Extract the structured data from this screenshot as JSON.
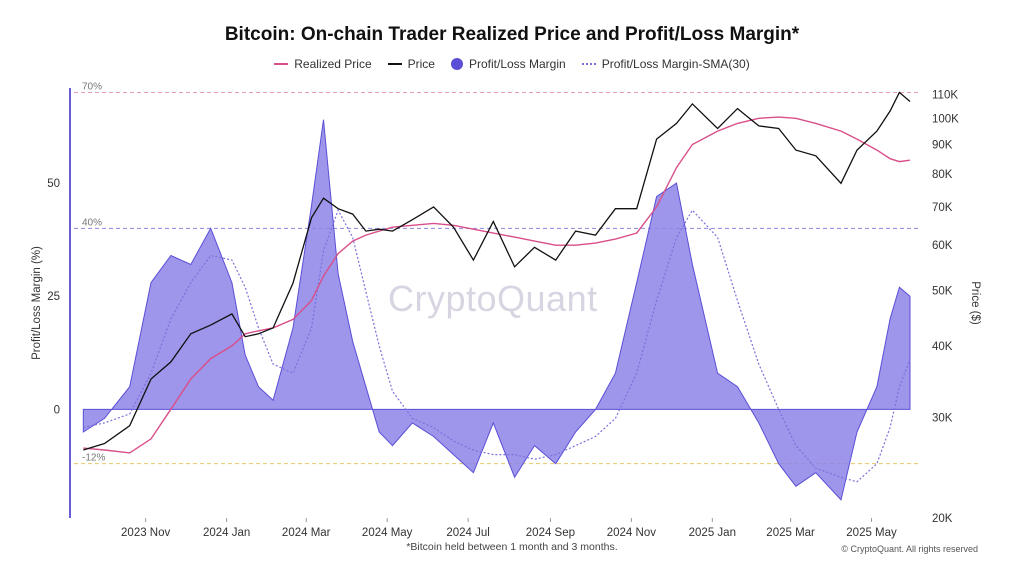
{
  "chart_data": {
    "type": "line",
    "title": "Bitcoin: On-chain Trader Realized Price and Profit/Loss Margin*",
    "footnote": "*Bitcoin held between 1 month and 3 months.",
    "copyright": "© CryptoQuant. All rights reserved",
    "watermark": "CryptoQuant",
    "ylabel_left": "Profit/Loss Margin (%)",
    "ylabel_right": "Price ($)",
    "x_ticks": [
      "2023 Nov",
      "2024 Jan",
      "2024 Mar",
      "2024 May",
      "2024 Jul",
      "2024 Sep",
      "2024 Nov",
      "2025 Jan",
      "2025 Mar",
      "2025 May"
    ],
    "y_left_ticks": [
      "0",
      "25",
      "50"
    ],
    "y_left_range": [
      -24,
      71
    ],
    "y_right_ticks": [
      "20K",
      "30K",
      "40K",
      "50K",
      "60K",
      "70K",
      "80K",
      "90K",
      "100K",
      "110K"
    ],
    "y_right_scale": "log",
    "y_right_range": [
      20000,
      113000
    ],
    "reference_lines": [
      {
        "label": "70%",
        "value": 70,
        "color": "#e8a0b0"
      },
      {
        "label": "40%",
        "value": 40,
        "color": "#8c88e0"
      },
      {
        "label": "-12%",
        "value": -12,
        "color": "#e8c86a"
      }
    ],
    "legend_placement": "top-center",
    "grid": false,
    "x": [
      "2023-09-15",
      "2023-10-01",
      "2023-10-20",
      "2023-11-05",
      "2023-11-20",
      "2023-12-05",
      "2023-12-20",
      "2024-01-05",
      "2024-01-15",
      "2024-01-25",
      "2024-02-05",
      "2024-02-20",
      "2024-03-05",
      "2024-03-14",
      "2024-03-25",
      "2024-04-05",
      "2024-04-15",
      "2024-04-25",
      "2024-05-05",
      "2024-05-20",
      "2024-06-05",
      "2024-06-20",
      "2024-07-05",
      "2024-07-20",
      "2024-08-05",
      "2024-08-20",
      "2024-09-05",
      "2024-09-20",
      "2024-10-05",
      "2024-10-20",
      "2024-11-05",
      "2024-11-20",
      "2024-12-05",
      "2024-12-17",
      "2025-01-05",
      "2025-01-20",
      "2025-02-05",
      "2025-02-20",
      "2025-03-05",
      "2025-03-20",
      "2025-04-08",
      "2025-04-20",
      "2025-05-05",
      "2025-05-15",
      "2025-05-22",
      "2025-05-30"
    ],
    "series": [
      {
        "name": "Realized Price",
        "color": "#d94f8a",
        "axis": "right",
        "values": [
          26500,
          26300,
          26000,
          27500,
          31000,
          35000,
          38000,
          40000,
          42000,
          42500,
          43000,
          44500,
          48000,
          53000,
          58000,
          61000,
          62500,
          63500,
          64500,
          65000,
          65500,
          65000,
          64000,
          63000,
          62000,
          61000,
          60000,
          60000,
          60500,
          61500,
          63000,
          70000,
          82000,
          90000,
          95000,
          98000,
          100000,
          100500,
          100000,
          98000,
          95000,
          92000,
          88000,
          85000,
          84000,
          84500
        ]
      },
      {
        "name": "Price",
        "color": "#111111",
        "axis": "right",
        "values": [
          26300,
          27000,
          29000,
          35000,
          37500,
          42000,
          43500,
          45500,
          41500,
          42000,
          43000,
          51500,
          67000,
          72500,
          69500,
          68000,
          63500,
          64000,
          63500,
          66500,
          70000,
          64500,
          56500,
          66000,
          55000,
          59500,
          56500,
          63500,
          62500,
          69500,
          69500,
          92000,
          98000,
          106000,
          96000,
          104000,
          97000,
          96000,
          88000,
          86000,
          77000,
          88000,
          95000,
          103000,
          111000,
          107000
        ]
      },
      {
        "name": "Profit/Loss Margin",
        "color": "#6a5ed8",
        "axis": "left",
        "values": [
          -5,
          -2,
          5,
          28,
          34,
          32,
          40,
          28,
          12,
          5,
          2,
          18,
          45,
          64,
          30,
          15,
          5,
          -5,
          -8,
          -3,
          -6,
          -10,
          -14,
          -3,
          -15,
          -8,
          -12,
          -5,
          0,
          8,
          28,
          47,
          50,
          32,
          8,
          5,
          -3,
          -12,
          -17,
          -14,
          -20,
          -5,
          5,
          20,
          27,
          25
        ]
      },
      {
        "name": "Profit/Loss Margin-SMA(30)",
        "color": "#7b70dc",
        "axis": "left",
        "values": [
          -4,
          -3,
          -1,
          8,
          20,
          28,
          34,
          33,
          27,
          18,
          10,
          8,
          18,
          35,
          44,
          38,
          26,
          14,
          4,
          -2,
          -4,
          -7,
          -9,
          -10,
          -10,
          -11,
          -10,
          -8,
          -6,
          -2,
          8,
          24,
          38,
          44,
          38,
          24,
          10,
          0,
          -8,
          -13,
          -15,
          -16,
          -12,
          -4,
          5,
          11
        ]
      }
    ]
  }
}
